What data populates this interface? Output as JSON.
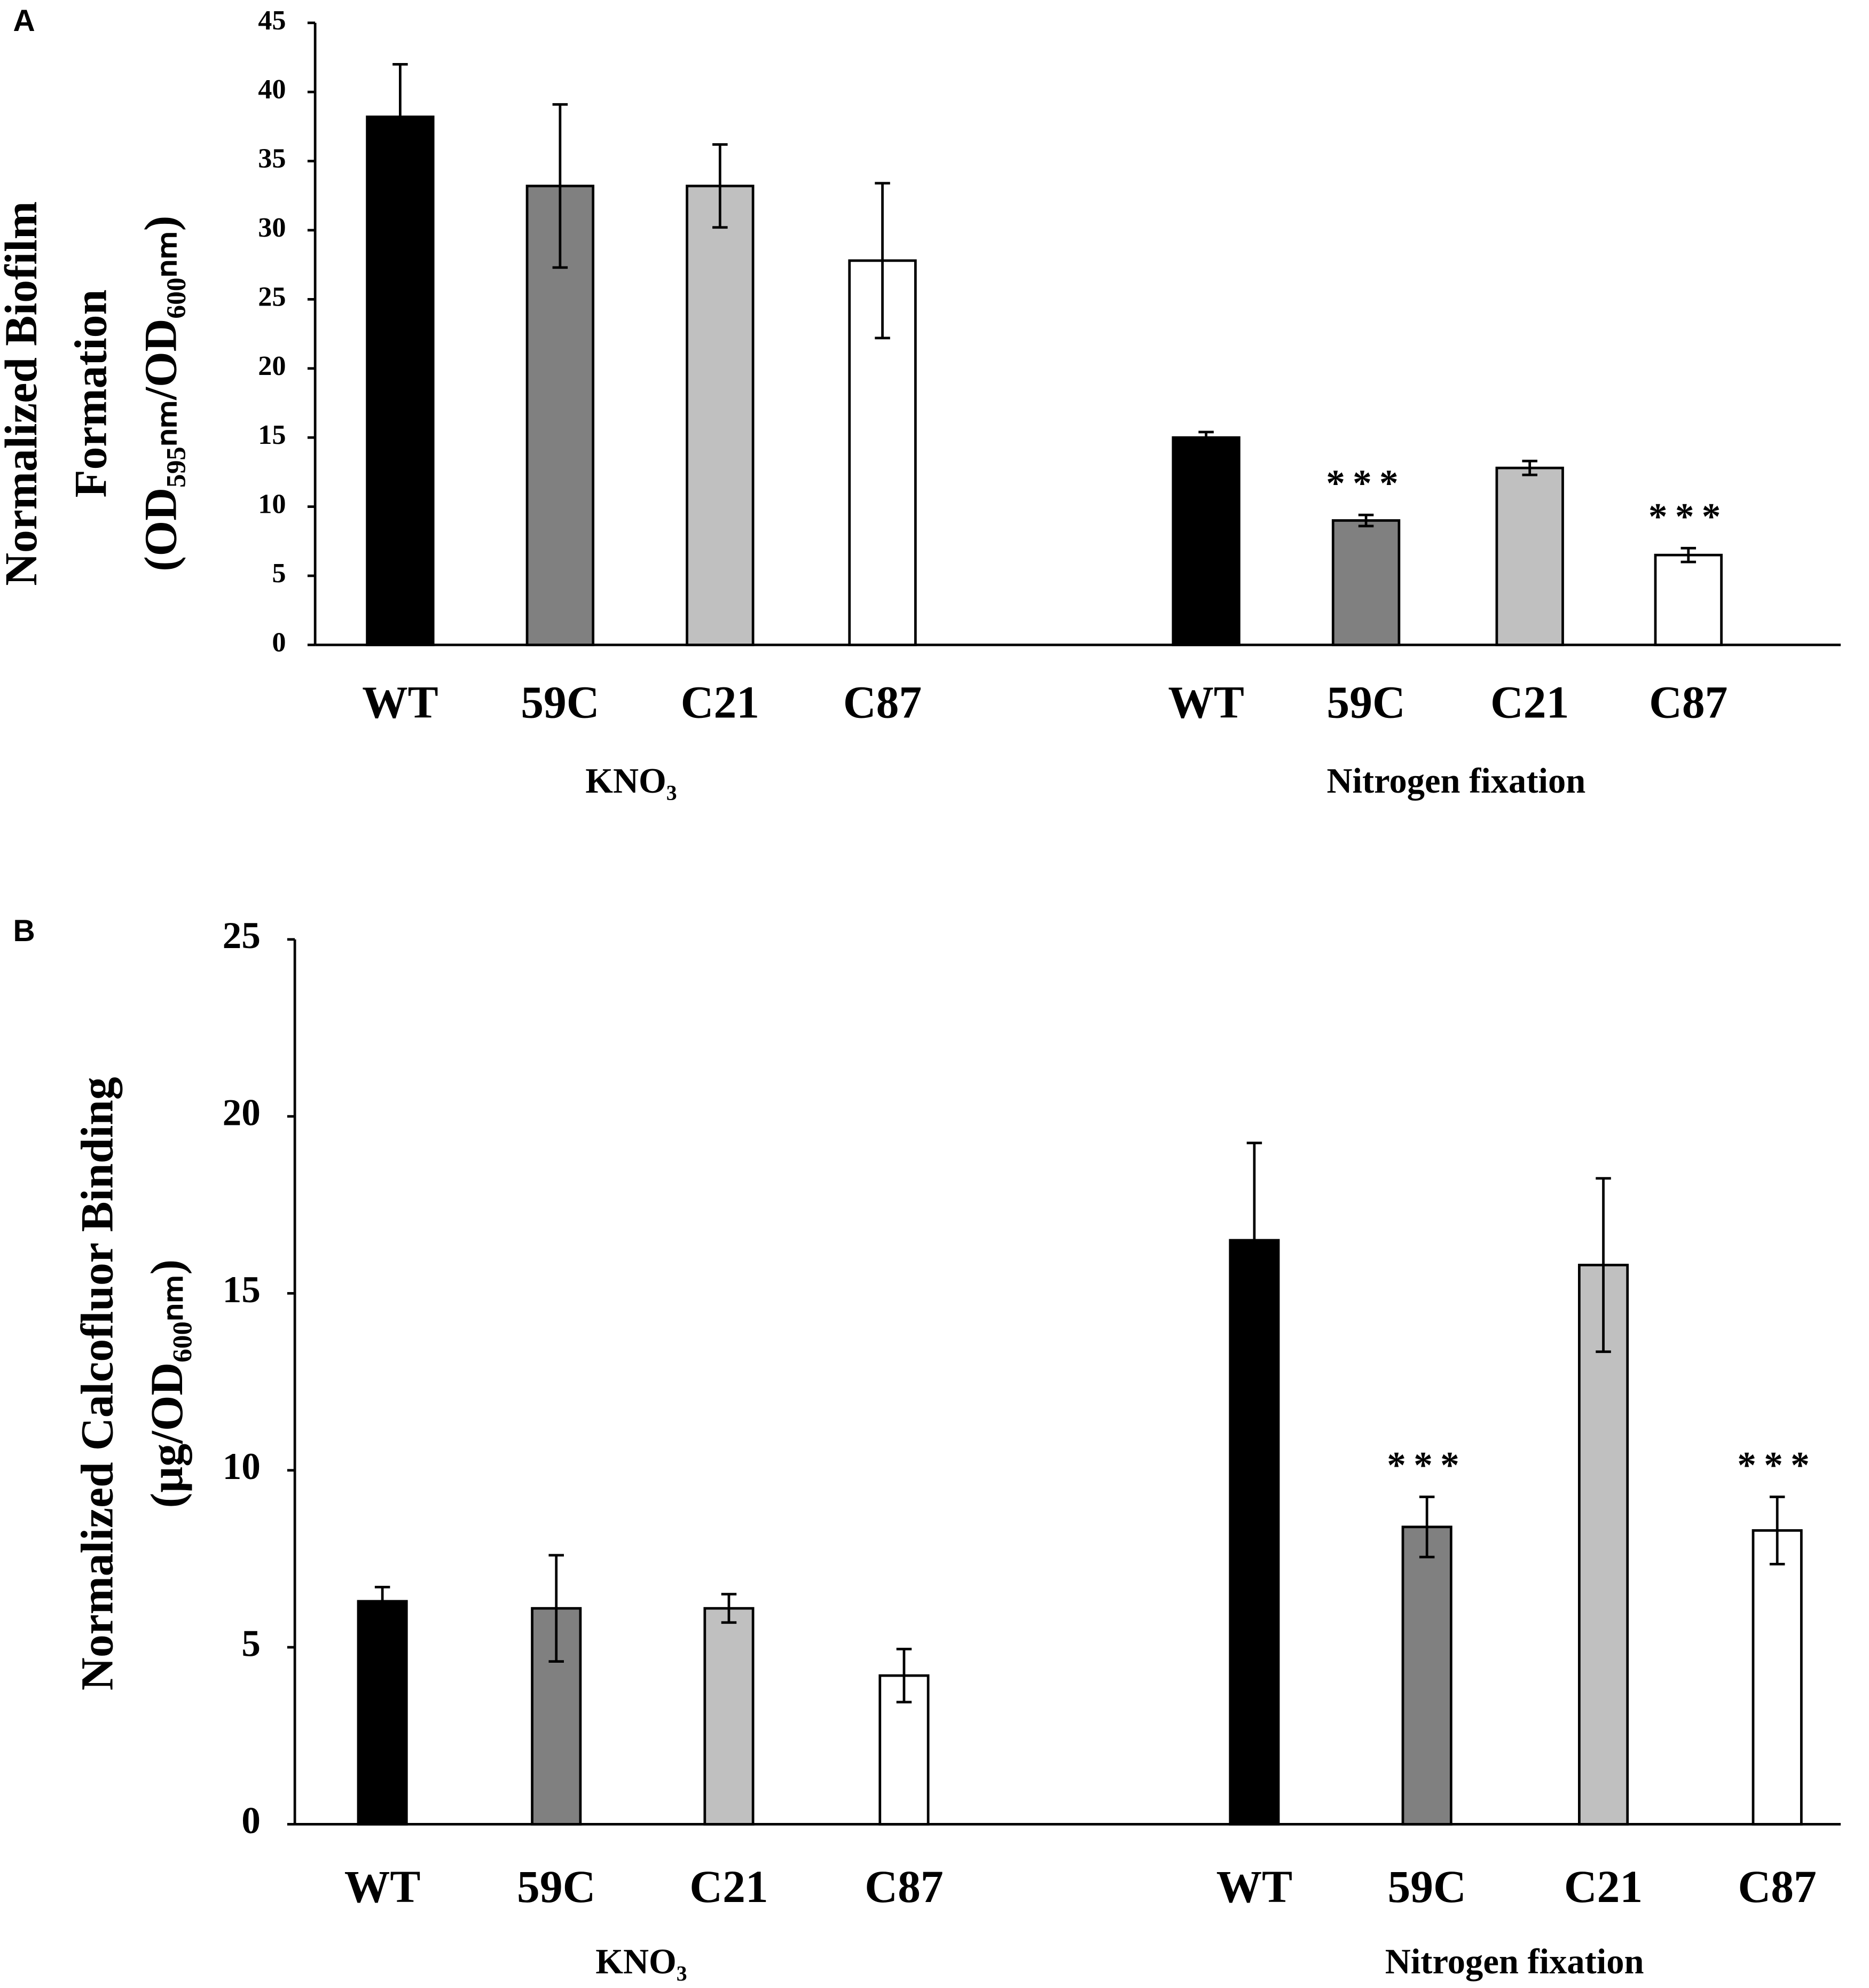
{
  "chart_data": [
    {
      "type": "bar",
      "panel": "A",
      "ylabel_lines": [
        "Normalized Biofilm",
        "Formation",
        "(OD₅₉₅ₙₘ/OD₆₀₀ₙₘ)"
      ],
      "categories": [
        "WT",
        "59C",
        "C21",
        "C87",
        "WT",
        "59C",
        "C21",
        "C87"
      ],
      "values": [
        38.2,
        33.2,
        33.2,
        27.8,
        15.0,
        9.0,
        12.8,
        6.5
      ],
      "errors": [
        3.8,
        5.9,
        3.0,
        5.6,
        0.4,
        0.4,
        0.5,
        0.5
      ],
      "value_annotations": [
        null,
        null,
        null,
        null,
        null,
        "***",
        null,
        "***"
      ],
      "colors": [
        "#000000",
        "#808080",
        "#c0c0c0",
        "#ffffff",
        "#000000",
        "#808080",
        "#c0c0c0",
        "#ffffff"
      ],
      "group_labels": [
        "KNO₃",
        "Nitrogen fixation"
      ],
      "ylim": [
        0,
        45
      ],
      "yticks": [
        0,
        5,
        10,
        15,
        20,
        25,
        30,
        35,
        40,
        45
      ]
    },
    {
      "type": "bar",
      "panel": "B",
      "ylabel_lines": [
        "Normalized Calcofluor Binding",
        "(µg/OD₆₀₀ₙₘ)"
      ],
      "categories": [
        "WT",
        "59C",
        "C21",
        "C87",
        "WT",
        "59C",
        "C21",
        "C87"
      ],
      "values": [
        6.3,
        6.1,
        6.1,
        4.2,
        16.5,
        8.4,
        15.8,
        8.3
      ],
      "errors": [
        0.4,
        1.5,
        0.4,
        0.75,
        2.75,
        0.85,
        2.45,
        0.95
      ],
      "value_annotations": [
        null,
        null,
        null,
        null,
        null,
        "***",
        null,
        "***"
      ],
      "colors": [
        "#000000",
        "#808080",
        "#c0c0c0",
        "#ffffff",
        "#000000",
        "#808080",
        "#c0c0c0",
        "#ffffff"
      ],
      "group_labels": [
        "KNO₃",
        "Nitrogen fixation"
      ],
      "ylim": [
        0,
        25
      ],
      "yticks": [
        0,
        5,
        10,
        15,
        20,
        25
      ]
    }
  ]
}
